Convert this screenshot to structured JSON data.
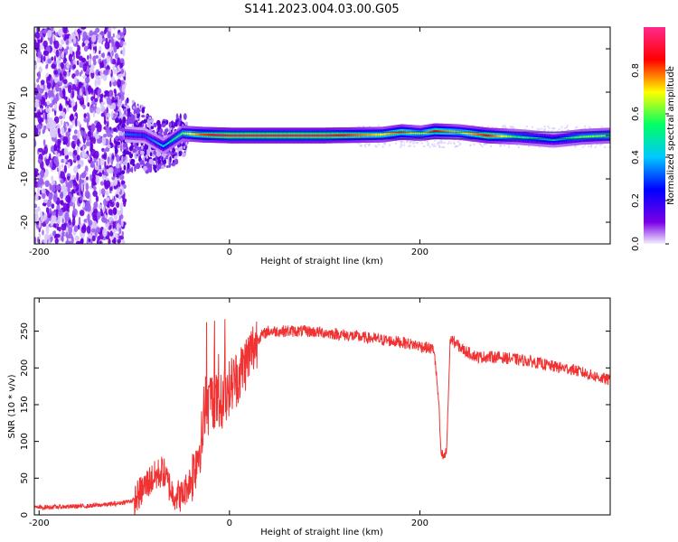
{
  "figure": {
    "title": "S141.2023.004.03.00.G05"
  },
  "chart_data": [
    {
      "type": "heatmap",
      "xlabel": "Height of straight line (km)",
      "ylabel": "Frequency (Hz)",
      "xlim": [
        -205,
        400
      ],
      "ylim": [
        -25,
        25
      ],
      "x_ticks": [
        -200,
        0,
        200
      ],
      "y_ticks": [
        -20,
        -10,
        0,
        10,
        20
      ],
      "colorbar": {
        "label": "Normalized spectral amplitude",
        "range": [
          0.0,
          1.0
        ],
        "ticks": [
          0.0,
          0.2,
          0.4,
          0.6,
          0.8
        ]
      },
      "colormap": [
        "#f5f0ff",
        "#7a00e6",
        "#0000ff",
        "#00c8ff",
        "#00ff64",
        "#ffff00",
        "#ff0000",
        "#ff2a8c"
      ],
      "noise_region": {
        "x": [
          -205,
          -110
        ],
        "y": [
          -25,
          25
        ],
        "amplitude": 0.05
      },
      "ridge": [
        {
          "x": -110,
          "y": 0.3,
          "amp": 0.35
        },
        {
          "x": -90,
          "y": 0.0,
          "amp": 0.3
        },
        {
          "x": -70,
          "y": -2.5,
          "amp": 0.45
        },
        {
          "x": -60,
          "y": -1.0,
          "amp": 0.55
        },
        {
          "x": -50,
          "y": 0.5,
          "amp": 0.6
        },
        {
          "x": -30,
          "y": 0.2,
          "amp": 0.8
        },
        {
          "x": 0,
          "y": 0.0,
          "amp": 0.9
        },
        {
          "x": 100,
          "y": 0.0,
          "amp": 0.9
        },
        {
          "x": 160,
          "y": 0.2,
          "amp": 0.7
        },
        {
          "x": 180,
          "y": 0.8,
          "amp": 0.8
        },
        {
          "x": 200,
          "y": 0.5,
          "amp": 0.6
        },
        {
          "x": 215,
          "y": 1.0,
          "amp": 0.85
        },
        {
          "x": 240,
          "y": 0.8,
          "amp": 0.65
        },
        {
          "x": 270,
          "y": 0.0,
          "amp": 0.85
        },
        {
          "x": 300,
          "y": -0.3,
          "amp": 0.55
        },
        {
          "x": 340,
          "y": -1.0,
          "amp": 0.45
        },
        {
          "x": 370,
          "y": -0.3,
          "amp": 0.6
        },
        {
          "x": 400,
          "y": 0.0,
          "amp": 0.6
        }
      ]
    },
    {
      "type": "line",
      "xlabel": "Height of straight line (km)",
      "ylabel": "SNR (10 * v/v)",
      "xlim": [
        -205,
        400
      ],
      "ylim": [
        0,
        295
      ],
      "x_ticks": [
        -200,
        0,
        200
      ],
      "y_ticks": [
        0,
        50,
        100,
        150,
        200,
        250
      ],
      "color": "#f03232",
      "series": [
        {
          "x": [
            -205,
            -150,
            -120,
            -100,
            -85,
            -70,
            -60,
            -50,
            -40,
            -30,
            -20,
            -10,
            0,
            10,
            20,
            30,
            40,
            60,
            80,
            100,
            120,
            150,
            180,
            200,
            215,
            220,
            222,
            225,
            228,
            232,
            245,
            260,
            280,
            300,
            320,
            340,
            360,
            380,
            400
          ],
          "y": [
            10,
            12,
            15,
            20,
            45,
            60,
            30,
            25,
            50,
            100,
            160,
            150,
            175,
            190,
            215,
            240,
            250,
            250,
            250,
            248,
            245,
            240,
            235,
            230,
            225,
            150,
            85,
            78,
            85,
            240,
            225,
            215,
            215,
            212,
            208,
            202,
            198,
            190,
            183
          ]
        }
      ]
    }
  ]
}
